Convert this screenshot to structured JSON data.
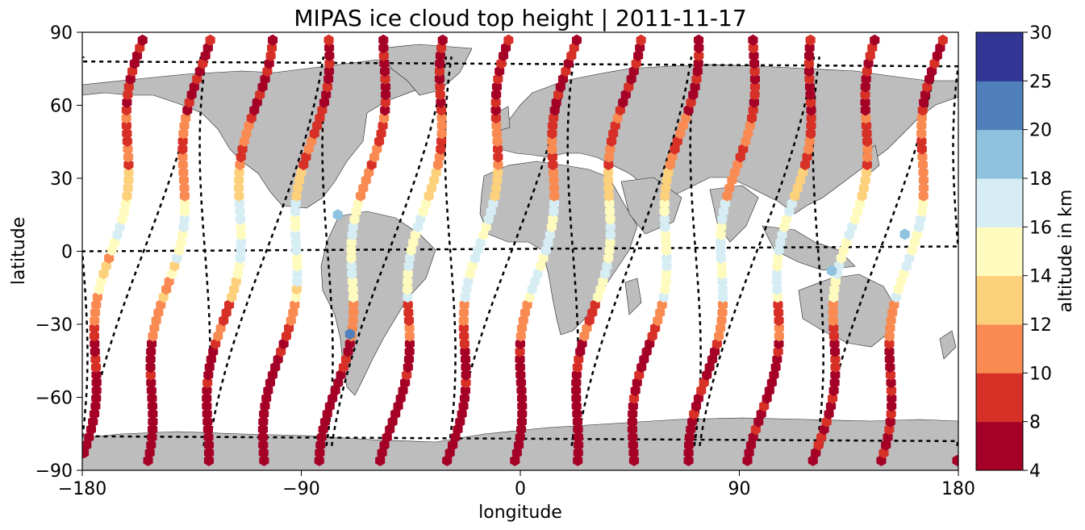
{
  "chart_data": {
    "type": "scatter",
    "title": "MIPAS ice cloud top height | 2011-11-17",
    "xlabel": "longitude",
    "ylabel": "latitude",
    "xlim": [
      -180,
      180
    ],
    "ylim": [
      -90,
      90
    ],
    "xticks": [
      "−180",
      "−90",
      "0",
      "90",
      "180"
    ],
    "yticks": [
      "90",
      "60",
      "30",
      "0",
      "−30",
      "−60",
      "−90"
    ],
    "grid": false,
    "map": "world-coastlines",
    "colorbar": {
      "label": "altitude in km",
      "ticks": [
        "4",
        "8",
        "10",
        "12",
        "14",
        "16",
        "18",
        "20",
        "25",
        "30"
      ],
      "bounds": [
        4,
        8,
        10,
        12,
        14,
        16,
        18,
        20,
        25,
        30
      ],
      "colors": [
        "#a50026",
        "#d73027",
        "#f46d43",
        "#fdae61",
        "#fee090",
        "#ffffbf",
        "#e0f3f8",
        "#abd9e9",
        "#74add1",
        "#313695"
      ],
      "bin_colors": [
        "#a50026",
        "#d73027",
        "#f88a52",
        "#fdd17c",
        "#fffbbf",
        "#d6edf4",
        "#8ec2de",
        "#4f80bb",
        "#313695"
      ]
    },
    "orbit_tracks": {
      "count": 14,
      "phase_lon0": -180,
      "spacing_deg": 25.2,
      "amplitude_deg": 46
    },
    "highlights": [
      {
        "lon": -70,
        "lat": -34,
        "altitude_km": 22
      },
      {
        "lon": 158,
        "lat": 7,
        "altitude_km": 19
      },
      {
        "lon": 128,
        "lat": -8,
        "altitude_km": 19
      },
      {
        "lon": -75,
        "lat": 15,
        "altitude_km": 19
      }
    ]
  }
}
